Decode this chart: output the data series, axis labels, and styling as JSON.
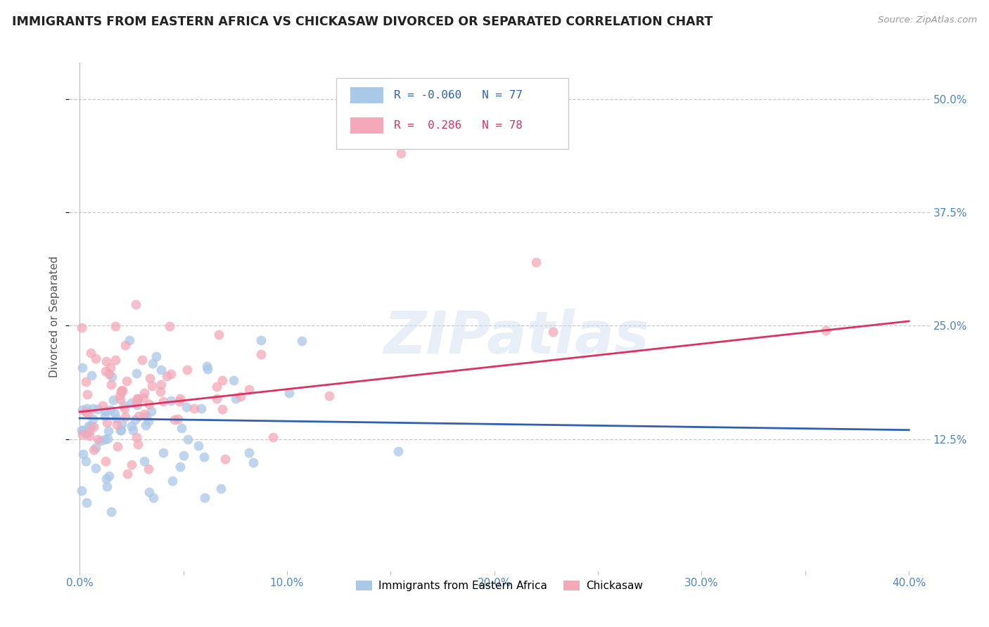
{
  "title": "IMMIGRANTS FROM EASTERN AFRICA VS CHICKASAW DIVORCED OR SEPARATED CORRELATION CHART",
  "source": "Source: ZipAtlas.com",
  "xlabel_ticks": [
    "0.0%",
    "",
    "10.0%",
    "",
    "20.0%",
    "",
    "30.0%",
    "",
    "40.0%"
  ],
  "xlabel_tick_vals": [
    0.0,
    0.05,
    0.1,
    0.15,
    0.2,
    0.25,
    0.3,
    0.35,
    0.4
  ],
  "ylabel": "Divorced or Separated",
  "ylabel_ticks": [
    "12.5%",
    "25.0%",
    "37.5%",
    "50.0%"
  ],
  "ylabel_tick_vals": [
    0.125,
    0.25,
    0.375,
    0.5
  ],
  "xlim": [
    -0.005,
    0.41
  ],
  "ylim": [
    -0.02,
    0.54
  ],
  "blue_R": -0.06,
  "blue_N": 77,
  "pink_R": 0.286,
  "pink_N": 78,
  "blue_color": "#aac8e8",
  "pink_color": "#f4a8b8",
  "blue_line_color": "#3060b0",
  "pink_line_color": "#e03060",
  "watermark": "ZIPatlas",
  "background_color": "#ffffff",
  "grid_color": "#c8c8c8",
  "axis_label_color": "#4a86c8",
  "title_color": "#222222",
  "xlabel_blue": "Immigrants from Eastern Africa",
  "xlabel_pink": "Chickasaw"
}
